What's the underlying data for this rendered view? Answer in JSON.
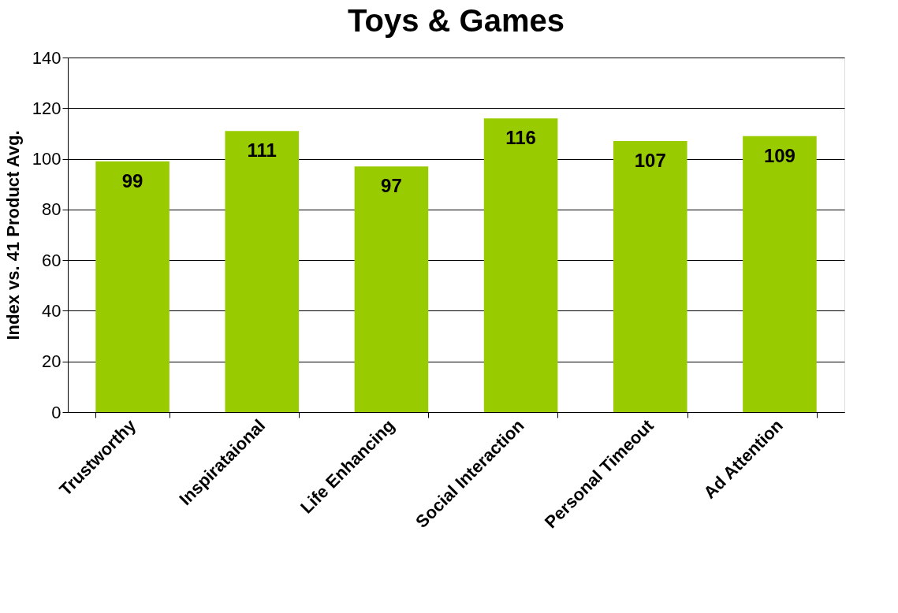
{
  "chart_data": {
    "type": "bar",
    "title": "Toys & Games",
    "ylabel": "Index vs. 41 Product Avg.",
    "categories": [
      "Trustworthy",
      "Inspirataional",
      "Life Enhancing",
      "Social Interaction",
      "Personal Timeout",
      "Ad Attention"
    ],
    "values": [
      99,
      111,
      97,
      116,
      107,
      109
    ],
    "color": "#99cc00",
    "ylim": [
      0,
      140
    ],
    "yticks": [
      0,
      20,
      40,
      60,
      80,
      100,
      120,
      140
    ],
    "grid": "y",
    "data_labels": true
  }
}
